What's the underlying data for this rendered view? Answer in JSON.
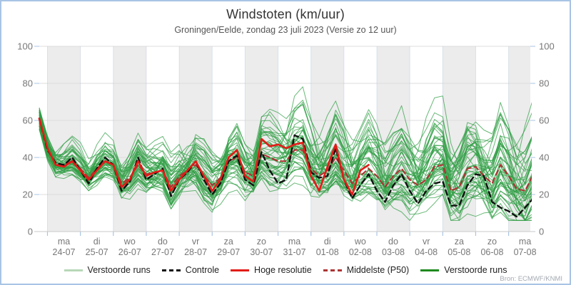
{
  "header": {
    "title": "Windstoten (km/uur)",
    "subtitle": "Groningen/Eelde, zondag 23 juli 2023 (Versie zo 12 uur)"
  },
  "source_label": "Bron: ECMWF/KNMI",
  "legend": {
    "items": [
      {
        "label": "Verstoorde runs",
        "color": "#b7d8b7",
        "dash": false
      },
      {
        "label": "Controle",
        "color": "#111111",
        "dash": true
      },
      {
        "label": "Hoge resolutie",
        "color": "#e31b17",
        "dash": false
      },
      {
        "label": "Middelste (P50)",
        "color": "#ad3333",
        "dash": true
      },
      {
        "label": "Verstoorde runs",
        "color": "#1e8a1e",
        "dash": false
      }
    ]
  },
  "chart_data": {
    "type": "line",
    "title": "Windstoten (km/uur)",
    "subtitle": "Groningen/Eelde, zondag 23 juli 2023 (Versie zo 12 uur)",
    "ylabel": "km/uur",
    "y_axis": {
      "min": 0,
      "max": 100,
      "ticks": [
        0,
        20,
        40,
        60,
        80,
        100
      ],
      "sides": "both",
      "grid": true
    },
    "x_axis": {
      "step_hours": 6,
      "hours_total": 360,
      "first_day_boundary_hour": 6,
      "band_shading": "alternate-gray-starting-with-first-day",
      "days": [
        {
          "dow": "ma",
          "date": "24-07"
        },
        {
          "dow": "di",
          "date": "25-07"
        },
        {
          "dow": "wo",
          "date": "26-07"
        },
        {
          "dow": "do",
          "date": "27-07"
        },
        {
          "dow": "vr",
          "date": "28-07"
        },
        {
          "dow": "za",
          "date": "29-07"
        },
        {
          "dow": "zo",
          "date": "30-07"
        },
        {
          "dow": "ma",
          "date": "31-07"
        },
        {
          "dow": "di",
          "date": "01-08"
        },
        {
          "dow": "wo",
          "date": "02-08"
        },
        {
          "dow": "do",
          "date": "03-08"
        },
        {
          "dow": "vr",
          "date": "04-08"
        },
        {
          "dow": "za",
          "date": "05-08"
        },
        {
          "dow": "zo",
          "date": "06-08"
        },
        {
          "dow": "ma",
          "date": "07-08"
        }
      ]
    },
    "series": [
      {
        "name": "Hoge resolutie",
        "color": "#e31b17",
        "style": "solid",
        "width": 2.6,
        "values": [
          61,
          45,
          36,
          35,
          38,
          33,
          28,
          33,
          38,
          36,
          24,
          28,
          38,
          30,
          32,
          33,
          22,
          28,
          33,
          38,
          30,
          22,
          28,
          40,
          44,
          30,
          27,
          50,
          46,
          47,
          45,
          47,
          48,
          30,
          22,
          35,
          47,
          28,
          20,
          33,
          36
        ]
      },
      {
        "name": "Controle",
        "color": "#111111",
        "style": "dashed",
        "width": 2.4,
        "values": [
          61,
          44,
          37,
          36,
          40,
          33,
          26,
          34,
          40,
          36,
          22,
          27,
          40,
          28,
          31,
          34,
          19,
          28,
          32,
          38,
          28,
          20,
          26,
          38,
          41,
          28,
          25,
          43,
          33,
          26,
          28,
          52,
          50,
          32,
          29,
          30,
          45,
          28,
          18,
          25,
          31,
          22,
          16,
          25,
          31,
          22,
          15,
          22,
          26,
          27,
          14,
          14,
          25,
          31,
          30,
          16,
          13,
          11,
          8,
          13,
          18
        ]
      },
      {
        "name": "Middelste (P50)",
        "color": "#ad3333",
        "style": "dashed",
        "width": 2.1,
        "values": [
          61,
          45,
          36,
          36,
          38,
          34,
          29,
          34,
          38,
          36,
          26,
          29,
          36,
          31,
          32,
          33,
          24,
          30,
          33,
          36,
          30,
          25,
          29,
          38,
          40,
          32,
          30,
          42,
          40,
          38,
          38,
          44,
          44,
          34,
          30,
          33,
          40,
          33,
          26,
          30,
          34,
          30,
          24,
          30,
          34,
          28,
          25,
          28,
          35,
          36,
          22,
          24,
          34,
          35,
          30,
          26,
          36,
          30,
          23,
          22,
          31
        ]
      }
    ],
    "ensemble": {
      "name": "Verstoorde runs",
      "color": "#2f9e44",
      "count": 50,
      "opacity": 0.72,
      "seed": 20230723,
      "base_series": "Middelste (P50)"
    },
    "colors": {
      "band": "#ececec",
      "grid": "#dcdcdc",
      "axis_line": "#c9c9c9",
      "tick": "#a9c4e4",
      "axis_text": "#777777",
      "border": "#a9c4e4"
    },
    "legend_position": "bottom"
  }
}
